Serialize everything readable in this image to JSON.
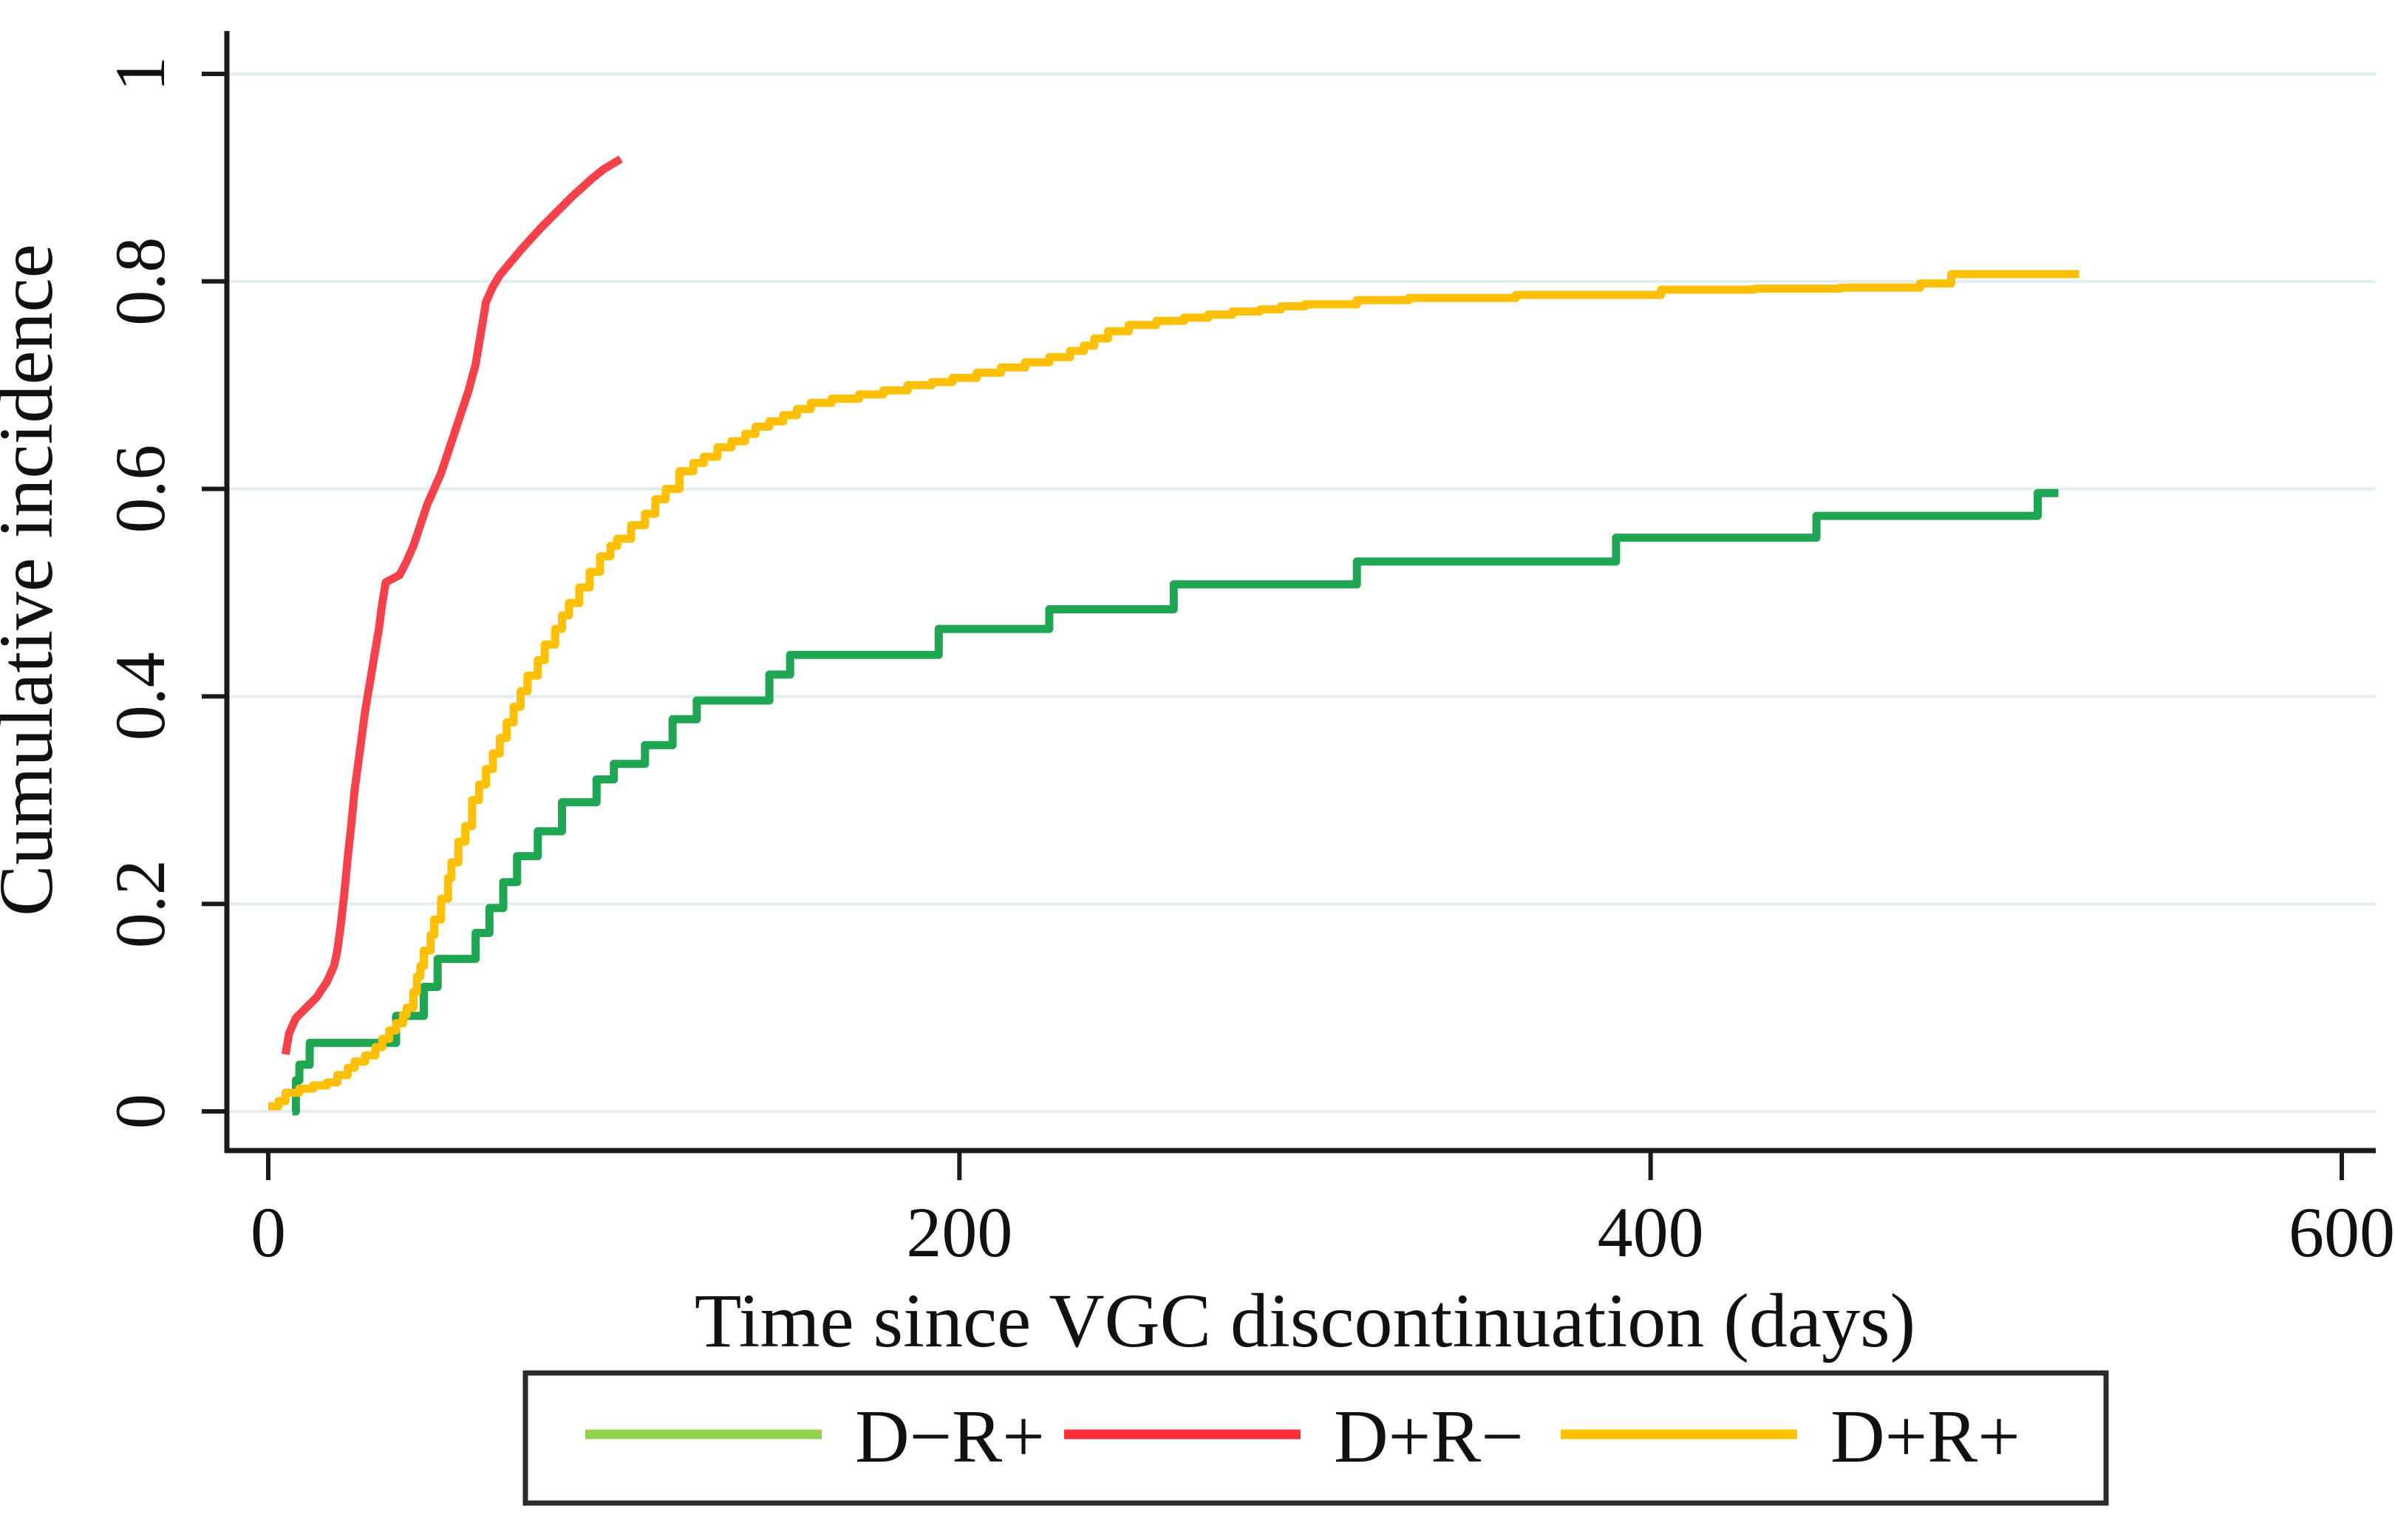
{
  "figure": {
    "background": "#ffffff"
  },
  "colors": {
    "grid": "#E2EDEF",
    "axis": "#1a1a1a",
    "text": "#111111",
    "legend_border": "#2b2b2b",
    "legend_bg": "#ffffff"
  },
  "chart_data": {
    "type": "line",
    "subtype": "cumulative-incidence-step",
    "title": "",
    "xlabel": "Time since VGC discontinuation (days)",
    "ylabel": "Cumulative incidence",
    "xlim": [
      0,
      600
    ],
    "ylim": [
      0,
      1
    ],
    "x_ticks": [
      0,
      200,
      400,
      600
    ],
    "x_tick_labels": [
      "0",
      "200",
      "400",
      "600"
    ],
    "y_ticks": [
      0,
      0.2,
      0.4,
      0.6,
      0.8,
      1
    ],
    "y_tick_labels": [
      "0",
      "0.2",
      "0.4",
      "0.6",
      "0.8",
      "1"
    ],
    "grid": "horizontal-only",
    "legend_position": "bottom-boxed",
    "series": [
      {
        "name": "D−R+",
        "color": "#1FA653",
        "legend_color": "#92D050",
        "interp": "step",
        "points": [
          [
            7,
            0
          ],
          [
            8,
            0.03
          ],
          [
            9,
            0.045
          ],
          [
            12,
            0.066
          ],
          [
            37,
            0.092
          ],
          [
            45,
            0.12
          ],
          [
            49,
            0.147
          ],
          [
            60,
            0.172
          ],
          [
            64,
            0.196
          ],
          [
            68,
            0.221
          ],
          [
            72,
            0.246
          ],
          [
            78,
            0.27
          ],
          [
            85,
            0.298
          ],
          [
            95,
            0.32
          ],
          [
            100,
            0.335
          ],
          [
            109,
            0.353
          ],
          [
            117,
            0.378
          ],
          [
            124,
            0.396
          ],
          [
            145,
            0.421
          ],
          [
            151,
            0.44
          ],
          [
            194,
            0.465
          ],
          [
            226,
            0.484
          ],
          [
            262,
            0.508
          ],
          [
            315,
            0.53
          ],
          [
            390,
            0.553
          ],
          [
            448,
            0.574
          ],
          [
            512,
            0.596
          ],
          [
            518,
            0.596
          ]
        ]
      },
      {
        "name": "D+R−",
        "color": "#F6414B",
        "legend_color": "#FA2E38",
        "interp": "line",
        "points": [
          [
            5,
            0.055
          ],
          [
            6,
            0.075
          ],
          [
            8,
            0.09
          ],
          [
            11,
            0.1
          ],
          [
            14,
            0.11
          ],
          [
            17,
            0.125
          ],
          [
            19,
            0.14
          ],
          [
            20,
            0.155
          ],
          [
            21,
            0.18
          ],
          [
            22,
            0.21
          ],
          [
            23,
            0.245
          ],
          [
            24,
            0.275
          ],
          [
            25,
            0.31
          ],
          [
            26,
            0.335
          ],
          [
            27,
            0.36
          ],
          [
            28,
            0.385
          ],
          [
            29,
            0.405
          ],
          [
            30,
            0.425
          ],
          [
            31,
            0.445
          ],
          [
            32,
            0.465
          ],
          [
            33,
            0.49
          ],
          [
            34,
            0.51
          ],
          [
            38,
            0.517
          ],
          [
            40,
            0.53
          ],
          [
            42,
            0.545
          ],
          [
            44,
            0.565
          ],
          [
            46,
            0.585
          ],
          [
            48,
            0.6
          ],
          [
            50,
            0.615
          ],
          [
            52,
            0.635
          ],
          [
            54,
            0.655
          ],
          [
            56,
            0.675
          ],
          [
            58,
            0.695
          ],
          [
            60,
            0.72
          ],
          [
            61,
            0.74
          ],
          [
            62,
            0.76
          ],
          [
            63,
            0.78
          ],
          [
            65,
            0.795
          ],
          [
            67,
            0.806
          ],
          [
            70,
            0.818
          ],
          [
            73,
            0.83
          ],
          [
            76,
            0.841
          ],
          [
            79,
            0.852
          ],
          [
            82,
            0.862
          ],
          [
            85,
            0.872
          ],
          [
            88,
            0.882
          ],
          [
            91,
            0.891
          ],
          [
            94,
            0.9
          ],
          [
            97,
            0.908
          ],
          [
            100,
            0.914
          ],
          [
            102,
            0.918
          ]
        ]
      },
      {
        "name": "D+R+",
        "color": "#FFC003",
        "legend_color": "#FFC003",
        "interp": "step",
        "points": [
          [
            0,
            0.005
          ],
          [
            3,
            0.01
          ],
          [
            5,
            0.018
          ],
          [
            9,
            0.022
          ],
          [
            13,
            0.025
          ],
          [
            17,
            0.028
          ],
          [
            20,
            0.035
          ],
          [
            23,
            0.042
          ],
          [
            25,
            0.048
          ],
          [
            28,
            0.054
          ],
          [
            31,
            0.062
          ],
          [
            33,
            0.07
          ],
          [
            35,
            0.078
          ],
          [
            37,
            0.085
          ],
          [
            39,
            0.093
          ],
          [
            40,
            0.1
          ],
          [
            42,
            0.115
          ],
          [
            43,
            0.13
          ],
          [
            44,
            0.14
          ],
          [
            45,
            0.155
          ],
          [
            47,
            0.17
          ],
          [
            48,
            0.185
          ],
          [
            50,
            0.205
          ],
          [
            52,
            0.225
          ],
          [
            53,
            0.24
          ],
          [
            55,
            0.26
          ],
          [
            57,
            0.275
          ],
          [
            59,
            0.3
          ],
          [
            61,
            0.315
          ],
          [
            63,
            0.33
          ],
          [
            65,
            0.345
          ],
          [
            67,
            0.36
          ],
          [
            69,
            0.375
          ],
          [
            71,
            0.39
          ],
          [
            73,
            0.405
          ],
          [
            75,
            0.42
          ],
          [
            78,
            0.435
          ],
          [
            80,
            0.45
          ],
          [
            83,
            0.465
          ],
          [
            85,
            0.478
          ],
          [
            87,
            0.49
          ],
          [
            90,
            0.505
          ],
          [
            93,
            0.52
          ],
          [
            96,
            0.535
          ],
          [
            99,
            0.545
          ],
          [
            101,
            0.552
          ],
          [
            105,
            0.565
          ],
          [
            109,
            0.576
          ],
          [
            112,
            0.59
          ],
          [
            115,
            0.6
          ],
          [
            119,
            0.617
          ],
          [
            123,
            0.625
          ],
          [
            126,
            0.631
          ],
          [
            130,
            0.64
          ],
          [
            134,
            0.646
          ],
          [
            138,
            0.653
          ],
          [
            141,
            0.66
          ],
          [
            145,
            0.665
          ],
          [
            149,
            0.671
          ],
          [
            153,
            0.677
          ],
          [
            157,
            0.683
          ],
          [
            163,
            0.687
          ],
          [
            171,
            0.691
          ],
          [
            178,
            0.695
          ],
          [
            185,
            0.7
          ],
          [
            192,
            0.703
          ],
          [
            198,
            0.707
          ],
          [
            205,
            0.712
          ],
          [
            212,
            0.717
          ],
          [
            219,
            0.722
          ],
          [
            226,
            0.727
          ],
          [
            232,
            0.733
          ],
          [
            236,
            0.738
          ],
          [
            239,
            0.745
          ],
          [
            243,
            0.752
          ],
          [
            249,
            0.758
          ],
          [
            257,
            0.762
          ],
          [
            265,
            0.765
          ],
          [
            272,
            0.768
          ],
          [
            279,
            0.771
          ],
          [
            287,
            0.773
          ],
          [
            293,
            0.776
          ],
          [
            300,
            0.778
          ],
          [
            315,
            0.782
          ],
          [
            330,
            0.784
          ],
          [
            361,
            0.787
          ],
          [
            403,
            0.792
          ],
          [
            430,
            0.793
          ],
          [
            455,
            0.794
          ],
          [
            478,
            0.798
          ],
          [
            487,
            0.807
          ],
          [
            524,
            0.807
          ]
        ]
      }
    ]
  },
  "legend": {
    "entries": [
      {
        "label": "D−R+"
      },
      {
        "label": "D+R−"
      },
      {
        "label": "D+R+"
      }
    ]
  }
}
